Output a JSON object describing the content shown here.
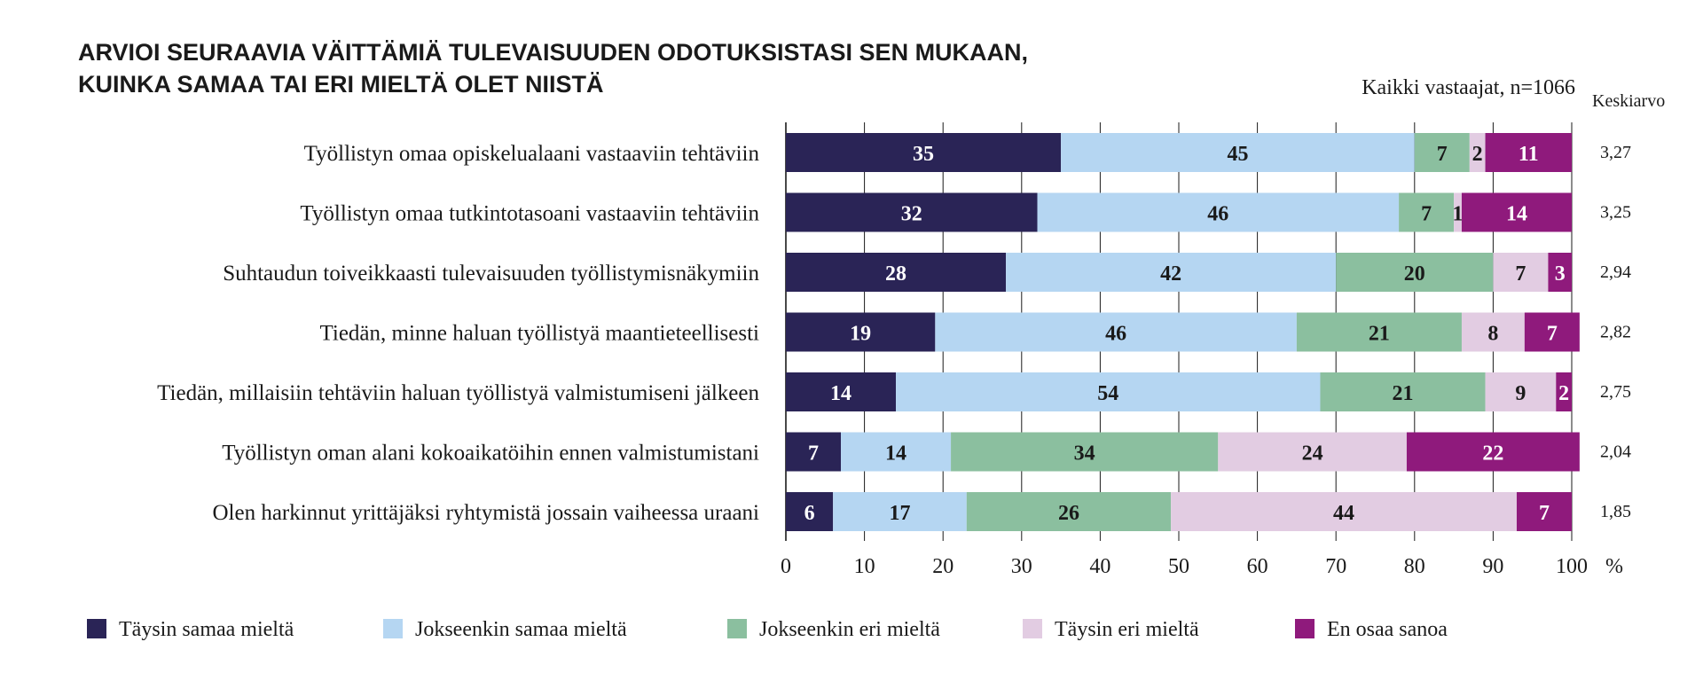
{
  "chart_data": {
    "type": "bar",
    "orientation": "horizontal",
    "stacked": true,
    "title_lines": [
      "ARVIOI SEURAAVIA VÄITTÄMIÄ TULEVAISUUDEN ODOTUKSISTASI SEN MUKAAN,",
      "KUINKA SAMAA TAI ERI MIELTÄ OLET NIISTÄ"
    ],
    "subtitle": "Kaikki vastaajat, n=1066",
    "mean_header": "Keskiarvo",
    "x_unit": "%",
    "xlim": [
      0,
      100
    ],
    "x_ticks": [
      0,
      10,
      20,
      30,
      40,
      50,
      60,
      70,
      80,
      90,
      100
    ],
    "grid": "vertical",
    "legend_position": "bottom",
    "categories": [
      "Työllistyn omaa opiskelualaani vastaaviin tehtäviin",
      "Työllistyn omaa tutkintotasoani vastaaviin tehtäviin",
      "Suhtaudun toiveikkaasti tulevaisuuden työllistymisnäkymiin",
      "Tiedän, minne haluan työllistyä maantieteellisesti",
      "Tiedän, millaisiin tehtäviin haluan työllistyä valmistumiseni jälkeen",
      "Työllistyn oman alani kokoaikatöihin ennen valmistumistani",
      "Olen harkinnut yrittäjäksi ryhtymistä jossain vaiheessa uraani"
    ],
    "means": [
      "3,27",
      "3,25",
      "2,94",
      "2,82",
      "2,75",
      "2,04",
      "1,85"
    ],
    "series": [
      {
        "name": "Täysin samaa mieltä",
        "color": "#2a2456",
        "label_color": "#ffffff",
        "values": [
          35,
          32,
          28,
          19,
          14,
          7,
          6
        ]
      },
      {
        "name": "Jokseenkin samaa mieltä",
        "color": "#b5d6f2",
        "label_color": "#1a1a1a",
        "values": [
          45,
          46,
          42,
          46,
          54,
          14,
          17
        ]
      },
      {
        "name": "Jokseenkin eri mieltä",
        "color": "#8bbf9f",
        "label_color": "#1a1a1a",
        "values": [
          7,
          7,
          20,
          21,
          21,
          34,
          26
        ]
      },
      {
        "name": "Täysin eri mieltä",
        "color": "#e2cce2",
        "label_color": "#1a1a1a",
        "values": [
          2,
          1,
          7,
          8,
          9,
          24,
          44
        ]
      },
      {
        "name": "En osaa sanoa",
        "color": "#8f1a7c",
        "label_color": "#ffffff",
        "values": [
          11,
          14,
          3,
          7,
          2,
          22,
          7
        ]
      }
    ]
  }
}
